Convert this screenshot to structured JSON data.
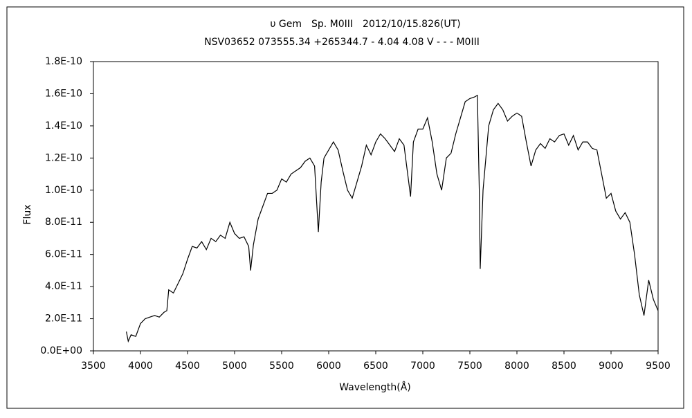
{
  "chart_data": {
    "type": "line",
    "title": "υ Gem　Sp. M0III　2012/10/15.826(UT)",
    "subtitle": "NSV03652 073555.34 +265344.7 - 4.04 4.08 V - - - M0III",
    "x_label": "Wavelength(Å)",
    "y_label": "Flux",
    "x": [
      3850,
      3870,
      3900,
      3950,
      4000,
      4050,
      4100,
      4150,
      4200,
      4250,
      4280,
      4300,
      4350,
      4400,
      4450,
      4500,
      4550,
      4600,
      4650,
      4700,
      4750,
      4800,
      4850,
      4900,
      4950,
      5000,
      5050,
      5100,
      5150,
      5170,
      5200,
      5250,
      5300,
      5350,
      5400,
      5450,
      5500,
      5550,
      5600,
      5650,
      5700,
      5750,
      5800,
      5850,
      5890,
      5920,
      5950,
      6000,
      6050,
      6100,
      6150,
      6200,
      6250,
      6300,
      6350,
      6400,
      6450,
      6500,
      6550,
      6600,
      6650,
      6700,
      6750,
      6800,
      6870,
      6900,
      6950,
      7000,
      7050,
      7100,
      7150,
      7200,
      7250,
      7300,
      7350,
      7400,
      7450,
      7500,
      7550,
      7580,
      7600,
      7610,
      7640,
      7700,
      7750,
      7800,
      7850,
      7900,
      7950,
      8000,
      8050,
      8100,
      8150,
      8200,
      8250,
      8300,
      8350,
      8400,
      8450,
      8500,
      8550,
      8600,
      8650,
      8700,
      8750,
      8800,
      8850,
      8900,
      8950,
      9000,
      9050,
      9100,
      9150,
      9200,
      9250,
      9300,
      9350,
      9400,
      9450,
      9500
    ],
    "series": [
      {
        "color": "#000000",
        "values": [
          1.2e-11,
          6e-12,
          1e-11,
          9e-12,
          1.7e-11,
          2e-11,
          2.1e-11,
          2.2e-11,
          2.1e-11,
          2.4e-11,
          2.5e-11,
          3.8e-11,
          3.6e-11,
          4.2e-11,
          4.8e-11,
          5.7e-11,
          6.5e-11,
          6.4e-11,
          6.8e-11,
          6.3e-11,
          7e-11,
          6.8e-11,
          7.2e-11,
          7e-11,
          8e-11,
          7.3e-11,
          7e-11,
          7.1e-11,
          6.5e-11,
          5e-11,
          6.6e-11,
          8.2e-11,
          9e-11,
          9.8e-11,
          9.8e-11,
          1e-10,
          1.07e-10,
          1.05e-10,
          1.1e-10,
          1.12e-10,
          1.14e-10,
          1.18e-10,
          1.2e-10,
          1.15e-10,
          7.4e-11,
          1.05e-10,
          1.2e-10,
          1.25e-10,
          1.3e-10,
          1.25e-10,
          1.12e-10,
          1e-10,
          9.5e-11,
          1.05e-10,
          1.15e-10,
          1.28e-10,
          1.22e-10,
          1.3e-10,
          1.35e-10,
          1.32e-10,
          1.28e-10,
          1.24e-10,
          1.32e-10,
          1.28e-10,
          9.6e-11,
          1.3e-10,
          1.38e-10,
          1.38e-10,
          1.45e-10,
          1.3e-10,
          1.1e-10,
          1e-10,
          1.2e-10,
          1.23e-10,
          1.35e-10,
          1.45e-10,
          1.55e-10,
          1.57e-10,
          1.58e-10,
          1.59e-10,
          1e-10,
          5.1e-11,
          1e-10,
          1.4e-10,
          1.5e-10,
          1.54e-10,
          1.5e-10,
          1.43e-10,
          1.46e-10,
          1.48e-10,
          1.46e-10,
          1.3e-10,
          1.15e-10,
          1.25e-10,
          1.29e-10,
          1.26e-10,
          1.32e-10,
          1.3e-10,
          1.34e-10,
          1.35e-10,
          1.28e-10,
          1.34e-10,
          1.25e-10,
          1.3e-10,
          1.3e-10,
          1.26e-10,
          1.25e-10,
          1.1e-10,
          9.5e-11,
          9.8e-11,
          8.7e-11,
          8.2e-11,
          8.6e-11,
          8e-11,
          6e-11,
          3.5e-11,
          2.2e-11,
          4.4e-11,
          3.2e-11,
          2.5e-11
        ]
      }
    ],
    "xlim": [
      3500,
      9500
    ],
    "xticks": [
      3500,
      4000,
      4500,
      5000,
      5500,
      6000,
      6500,
      7000,
      7500,
      8000,
      8500,
      9000,
      9500
    ],
    "ylim": [
      0,
      1.8e-10
    ],
    "yticks": [
      {
        "value": 0,
        "label": "0.0E+00"
      },
      {
        "value": 2e-11,
        "label": "2.0E-11"
      },
      {
        "value": 4e-11,
        "label": "4.0E-11"
      },
      {
        "value": 6e-11,
        "label": "6.0E-11"
      },
      {
        "value": 8e-11,
        "label": "8.0E-11"
      },
      {
        "value": 1e-10,
        "label": "1.0E-10"
      },
      {
        "value": 1.2e-10,
        "label": "1.2E-10"
      },
      {
        "value": 1.4e-10,
        "label": "1.4E-10"
      },
      {
        "value": 1.6e-10,
        "label": "1.6E-10"
      },
      {
        "value": 1.8e-10,
        "label": "1.8E-10"
      }
    ],
    "grid": false
  }
}
